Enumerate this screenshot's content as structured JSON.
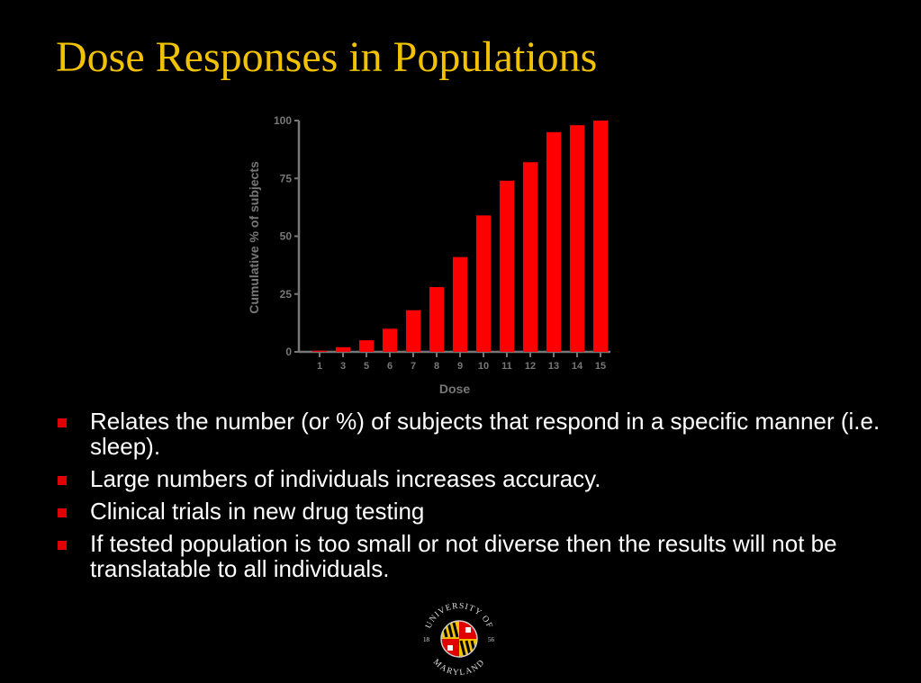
{
  "slide": {
    "title": "Dose Responses in Populations",
    "accent_color": "#f2c200",
    "bullet_color": "#e00000"
  },
  "bullets": [
    "Relates the number (or %) of subjects that respond in a specific manner (i.e. sleep).",
    "Large numbers of individuals increases accuracy.",
    "Clinical trials in new drug testing",
    "If tested population is too small or not diverse then the results will not be translatable to all individuals."
  ],
  "chart_data": {
    "type": "bar",
    "title": "",
    "xlabel": "Dose",
    "ylabel": "Cumulative % of subjects",
    "categories": [
      "1",
      "3",
      "5",
      "6",
      "7",
      "8",
      "9",
      "10",
      "11",
      "12",
      "13",
      "14",
      "15"
    ],
    "values": [
      0.5,
      2,
      5,
      10,
      18,
      28,
      41,
      59,
      74,
      82,
      95,
      98,
      100
    ],
    "ylim": [
      0,
      100
    ],
    "yticks": [
      0,
      25,
      50,
      75,
      100
    ],
    "grid": false,
    "legend": "none",
    "bar_color": "#ff0000",
    "axis_color": "#777777"
  },
  "logo": {
    "name": "University of Maryland seal",
    "text_top": "UNIVERSITY OF",
    "text_bottom": "MARYLAND",
    "year_left": "18",
    "year_right": "56"
  }
}
